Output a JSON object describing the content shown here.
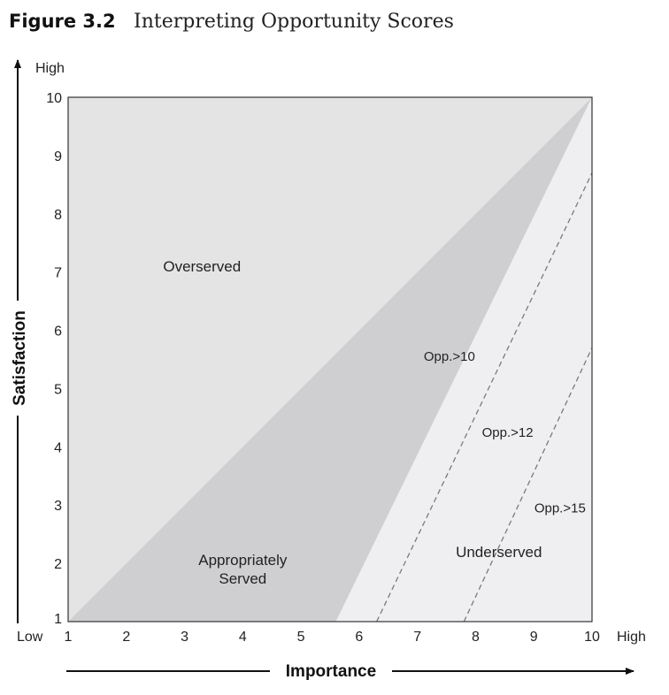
{
  "figure": {
    "number": "Figure 3.2",
    "title": "Interpreting Opportunity Scores"
  },
  "chart_data": {
    "type": "area",
    "xlabel": "Importance",
    "ylabel": "Satisfaction",
    "xlim": [
      1,
      10
    ],
    "ylim": [
      1,
      10
    ],
    "x_ticks": [
      1,
      2,
      3,
      4,
      5,
      6,
      7,
      8,
      9,
      10
    ],
    "y_ticks": [
      1,
      2,
      3,
      4,
      5,
      6,
      7,
      8,
      9,
      10
    ],
    "x_end_labels": {
      "low": "Low",
      "high": "High"
    },
    "y_high_label": "High",
    "grid": false,
    "regions": [
      {
        "name": "Overserved",
        "label": "Overserved",
        "label_at": [
          3.3,
          7.1
        ],
        "color": "#e4e4e4",
        "polygon": [
          [
            1,
            1
          ],
          [
            1,
            10
          ],
          [
            10,
            10
          ]
        ]
      },
      {
        "name": "Appropriately Served",
        "label": "Appropriately\nServed",
        "label_at": [
          4.0,
          1.9
        ],
        "color": "#cfcfd1",
        "polygon": [
          [
            1,
            1
          ],
          [
            10,
            10
          ],
          [
            5.6,
            1
          ]
        ]
      },
      {
        "name": "Underserved",
        "label": "Underserved",
        "label_at": [
          8.4,
          2.2
        ],
        "color": "#efeff1",
        "polygon": [
          [
            5.6,
            1
          ],
          [
            10,
            10
          ],
          [
            10,
            1
          ]
        ]
      }
    ],
    "threshold_lines": [
      {
        "label": "Opp.>10",
        "from": [
          6.3,
          1
        ],
        "to": [
          10,
          8.7
        ],
        "label_at": [
          7.55,
          5.55
        ]
      },
      {
        "label": "Opp.>12",
        "from": [
          7.8,
          1
        ],
        "to": [
          10,
          5.7
        ],
        "label_at": [
          8.55,
          4.25
        ]
      },
      {
        "label": "Opp.>15",
        "label_at": [
          9.45,
          2.95
        ]
      }
    ]
  }
}
